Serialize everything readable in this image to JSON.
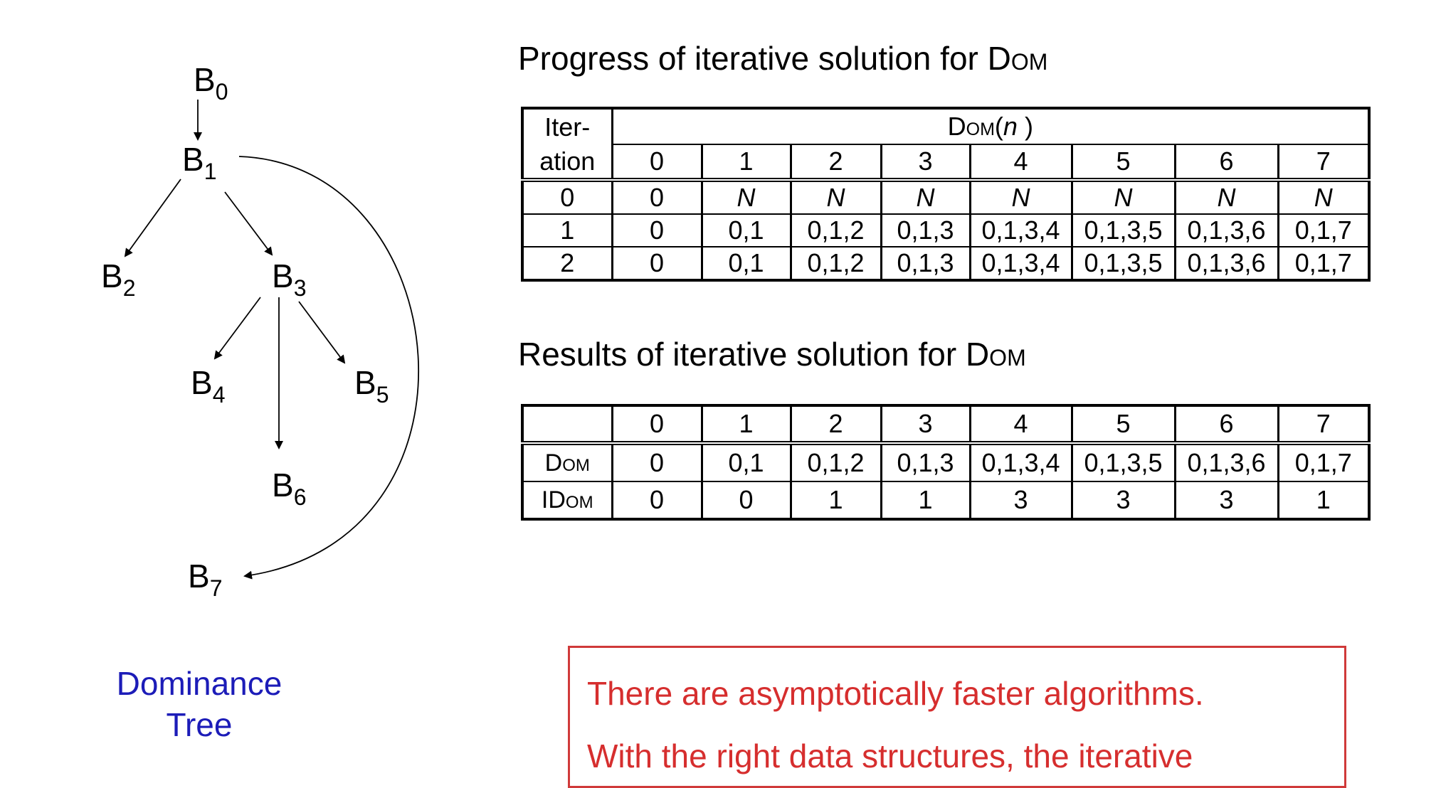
{
  "tree": {
    "nodes": [
      {
        "id": "b0",
        "base": "B",
        "sub": "0"
      },
      {
        "id": "b1",
        "base": "B",
        "sub": "1"
      },
      {
        "id": "b2",
        "base": "B",
        "sub": "2"
      },
      {
        "id": "b3",
        "base": "B",
        "sub": "3"
      },
      {
        "id": "b4",
        "base": "B",
        "sub": "4"
      },
      {
        "id": "b5",
        "base": "B",
        "sub": "5"
      },
      {
        "id": "b6",
        "base": "B",
        "sub": "6"
      },
      {
        "id": "b7",
        "base": "B",
        "sub": "7"
      }
    ],
    "edges": [
      [
        "b0",
        "b1"
      ],
      [
        "b1",
        "b2"
      ],
      [
        "b1",
        "b3"
      ],
      [
        "b3",
        "b4"
      ],
      [
        "b3",
        "b5"
      ],
      [
        "b3",
        "b6"
      ],
      [
        "b1",
        "b7"
      ]
    ],
    "caption_line1": "Dominance",
    "caption_line2": "Tree"
  },
  "progress": {
    "title_prefix": "Progress of iterative solution for ",
    "title_sc": "Dom",
    "iter_label_line1": "Iter-",
    "iter_label_line2": "ation",
    "dom_label_sc": "Dom",
    "dom_label_paren_open": "(",
    "dom_label_var": "n",
    "dom_label_paren_close": " )",
    "columns": [
      "0",
      "1",
      "2",
      "3",
      "4",
      "5",
      "6",
      "7"
    ],
    "rows": [
      {
        "iteration": "0",
        "values": [
          "0",
          "N",
          "N",
          "N",
          "N",
          "N",
          "N",
          "N"
        ]
      },
      {
        "iteration": "1",
        "values": [
          "0",
          "0,1",
          "0,1,2",
          "0,1,3",
          "0,1,3,4",
          "0,1,3,5",
          "0,1,3,6",
          "0,1,7"
        ]
      },
      {
        "iteration": "2",
        "values": [
          "0",
          "0,1",
          "0,1,2",
          "0,1,3",
          "0,1,3,4",
          "0,1,3,5",
          "0,1,3,6",
          "0,1,7"
        ]
      }
    ]
  },
  "results": {
    "title_prefix": "Results of iterative solution for ",
    "title_sc": "Dom",
    "columns": [
      "0",
      "1",
      "2",
      "3",
      "4",
      "5",
      "6",
      "7"
    ],
    "dom_label": "Dom",
    "idom_label": "IDom",
    "dom": [
      "0",
      "0,1",
      "0,1,2",
      "0,1,3",
      "0,1,3,4",
      "0,1,3,5",
      "0,1,3,6",
      "0,1,7"
    ],
    "idom": [
      "0",
      "0",
      "1",
      "1",
      "3",
      "3",
      "3",
      "1"
    ]
  },
  "note": {
    "line1": "There are asymptotically faster algorithms.",
    "line2": "With the right data structures, the iterative"
  }
}
